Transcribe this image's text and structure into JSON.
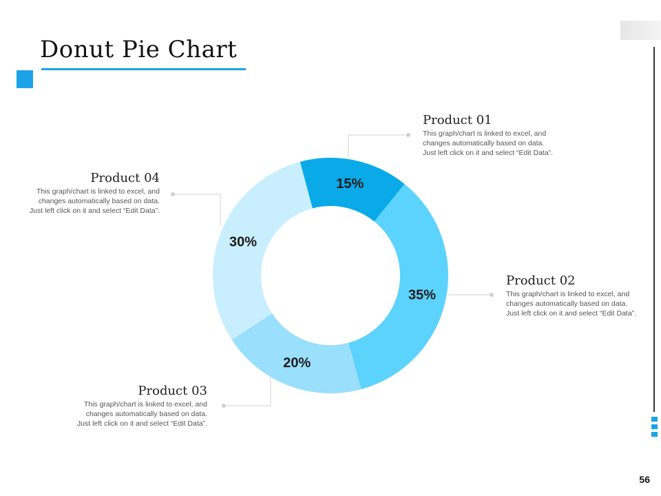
{
  "slide": {
    "title": "Donut Pie Chart",
    "page_number": "56"
  },
  "chart_data": {
    "type": "pie",
    "subtype": "donut",
    "title": "Donut Pie Chart",
    "categories": [
      "Product 01",
      "Product 02",
      "Product 03",
      "Product 04"
    ],
    "values": [
      15,
      35,
      20,
      30
    ],
    "value_labels": [
      "15%",
      "35%",
      "20%",
      "30%"
    ],
    "colors": [
      "#0aaae9",
      "#5cd3fc",
      "#9adffc",
      "#c9eefd"
    ]
  },
  "products": [
    {
      "title": "Product 01",
      "desc": "This graph/chart is linked to excel, and changes automatically based on data. Just left click on it and select “Edit Data”."
    },
    {
      "title": "Product 02",
      "desc": "This graph/chart is linked to excel, and changes automatically based on data. Just left click on it and select “Edit Data”."
    },
    {
      "title": "Product 03",
      "desc": "This graph/chart is linked to excel, and changes automatically based on data. Just left click on it and select “Edit Data”."
    },
    {
      "title": "Product 04",
      "desc": "This graph/chart is linked to excel, and changes automatically based on data. Just left click on it and select “Edit Data”."
    }
  ]
}
